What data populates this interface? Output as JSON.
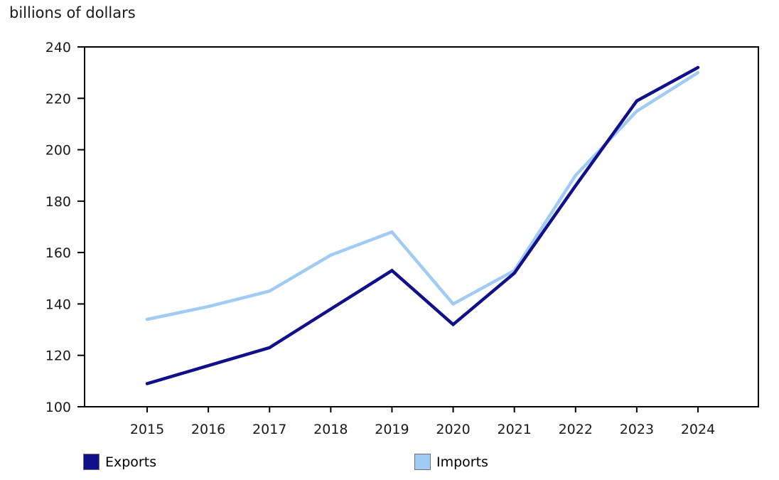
{
  "chart_data": {
    "type": "line",
    "title": "billions of dollars",
    "categories": [
      "2015",
      "2016",
      "2017",
      "2018",
      "2019",
      "2020",
      "2021",
      "2022",
      "2023",
      "2024"
    ],
    "series": [
      {
        "name": "Exports",
        "color": "#10108C",
        "values": [
          109,
          116,
          123,
          138,
          153,
          132,
          152,
          186,
          219,
          232
        ]
      },
      {
        "name": "Imports",
        "color": "#A0CBF4",
        "values": [
          134,
          139,
          145,
          159,
          168,
          140,
          153,
          190,
          215,
          230
        ]
      }
    ],
    "xlabel": "",
    "ylabel": "billions of dollars",
    "ylim": [
      100,
      240
    ],
    "ytick_step": 20,
    "grid": false,
    "legend_position": "bottom",
    "axis_color": "#000000",
    "text_color": "#1a1a1a"
  }
}
